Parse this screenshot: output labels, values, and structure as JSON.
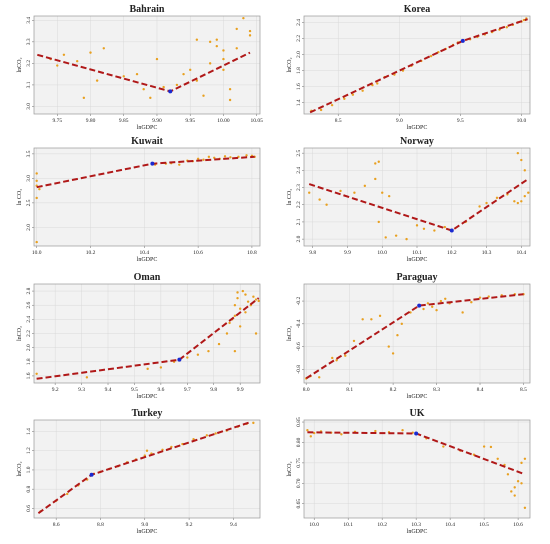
{
  "colors": {
    "points": "#e8a020",
    "fit": "#b01818",
    "breakpoint": "#1a2ad0",
    "frame": "#999999",
    "grid": "#d9d9d9",
    "panel": "#f2f2f2"
  },
  "chart_data": [
    {
      "type": "scatter",
      "title": "Bahrain",
      "xlabel": "lnGDPC",
      "ylabel": "lnCO₂",
      "xlim": [
        9.715,
        10.055
      ],
      "ylim": [
        2.965,
        3.42
      ],
      "xticks": [
        "9.75",
        "9.80",
        "9.85",
        "9.90",
        "9.95",
        "10.00",
        "10.05"
      ],
      "xtick_values": [
        9.75,
        9.8,
        9.85,
        9.9,
        9.95,
        10.0,
        10.05
      ],
      "yticks": [
        "3.0",
        "3.1",
        "3.2",
        "3.3",
        "3.4"
      ],
      "ytick_values": [
        3.0,
        3.1,
        3.2,
        3.3,
        3.4
      ],
      "grid": true,
      "fit": [
        [
          9.72,
          3.24
        ],
        [
          9.92,
          3.07
        ],
        [
          10.04,
          3.25
        ]
      ],
      "breakpoint": [
        9.92,
        3.07
      ],
      "points": [
        [
          9.74,
          3.22
        ],
        [
          9.75,
          3.19
        ],
        [
          9.76,
          3.24
        ],
        [
          9.78,
          3.21
        ],
        [
          9.79,
          3.04
        ],
        [
          9.8,
          3.25
        ],
        [
          9.81,
          3.12
        ],
        [
          9.82,
          3.27
        ],
        [
          9.85,
          3.14
        ],
        [
          9.87,
          3.15
        ],
        [
          9.88,
          3.08
        ],
        [
          9.89,
          3.04
        ],
        [
          9.9,
          3.22
        ],
        [
          9.91,
          3.09
        ],
        [
          9.92,
          3.07
        ],
        [
          9.93,
          3.1
        ],
        [
          9.94,
          3.15
        ],
        [
          9.95,
          3.17
        ],
        [
          9.96,
          3.12
        ],
        [
          9.97,
          3.05
        ],
        [
          9.98,
          3.3
        ],
        [
          9.99,
          3.28
        ],
        [
          10.0,
          3.22
        ],
        [
          10.0,
          3.17
        ],
        [
          10.01,
          3.08
        ],
        [
          10.01,
          3.03
        ],
        [
          10.02,
          3.27
        ],
        [
          10.02,
          3.36
        ],
        [
          10.03,
          3.41
        ],
        [
          10.04,
          3.35
        ],
        [
          10.04,
          3.33
        ],
        [
          9.99,
          3.31
        ],
        [
          10.0,
          3.26
        ],
        [
          9.96,
          3.31
        ],
        [
          9.98,
          3.2
        ]
      ]
    },
    {
      "type": "scatter",
      "title": "Korea",
      "xlabel": "lnGDPC",
      "ylabel": "lnCO₂",
      "xlim": [
        8.22,
        10.07
      ],
      "ylim": [
        1.26,
        2.48
      ],
      "xticks": [
        "8.5",
        "9.0",
        "9.5",
        "10.0"
      ],
      "xtick_values": [
        8.5,
        9.0,
        9.5,
        10.0
      ],
      "yticks": [
        "1.4",
        "1.6",
        "1.8",
        "2.0",
        "2.2",
        "2.4"
      ],
      "ytick_values": [
        1.4,
        1.6,
        1.8,
        2.0,
        2.2,
        2.4
      ],
      "grid": true,
      "fit": [
        [
          8.27,
          1.28
        ],
        [
          9.52,
          2.17
        ],
        [
          10.05,
          2.44
        ]
      ],
      "breakpoint": [
        9.52,
        2.17
      ],
      "points": [
        [
          8.28,
          1.3
        ],
        [
          8.36,
          1.31
        ],
        [
          8.45,
          1.37
        ],
        [
          8.55,
          1.45
        ],
        [
          8.62,
          1.5
        ],
        [
          8.7,
          1.55
        ],
        [
          8.78,
          1.62
        ],
        [
          8.82,
          1.64
        ],
        [
          8.88,
          1.72
        ],
        [
          8.96,
          1.75
        ],
        [
          9.03,
          1.8
        ],
        [
          9.1,
          1.86
        ],
        [
          9.18,
          1.92
        ],
        [
          9.26,
          1.98
        ],
        [
          9.32,
          2.03
        ],
        [
          9.38,
          2.07
        ],
        [
          9.44,
          2.12
        ],
        [
          9.48,
          2.15
        ],
        [
          9.52,
          2.17
        ],
        [
          9.58,
          2.19
        ],
        [
          9.64,
          2.22
        ],
        [
          9.7,
          2.25
        ],
        [
          9.76,
          2.28
        ],
        [
          9.82,
          2.31
        ],
        [
          9.88,
          2.34
        ],
        [
          9.93,
          2.37
        ],
        [
          9.97,
          2.4
        ],
        [
          10.0,
          2.41
        ],
        [
          10.02,
          2.43
        ],
        [
          10.04,
          2.45
        ]
      ]
    },
    {
      "type": "scatter",
      "title": "Kuwait",
      "xlabel": "lnGDPC",
      "ylabel": "ln CO₂",
      "xlim": [
        9.99,
        10.83
      ],
      "ylim": [
        1.62,
        3.62
      ],
      "xticks": [
        "10.0",
        "10.2",
        "10.4",
        "10.6",
        "10.8"
      ],
      "xtick_values": [
        10.0,
        10.2,
        10.4,
        10.6,
        10.8
      ],
      "yticks": [
        "2.0",
        "2.5",
        "3.0",
        "3.5"
      ],
      "ytick_values": [
        2.0,
        2.5,
        3.0,
        3.5
      ],
      "grid": true,
      "fit": [
        [
          10.0,
          2.82
        ],
        [
          10.43,
          3.3
        ],
        [
          10.81,
          3.44
        ]
      ],
      "breakpoint": [
        10.43,
        3.3
      ],
      "points": [
        [
          10.0,
          1.7
        ],
        [
          10.0,
          2.6
        ],
        [
          10.0,
          2.85
        ],
        [
          10.0,
          2.95
        ],
        [
          10.0,
          3.1
        ],
        [
          10.01,
          2.78
        ],
        [
          10.44,
          3.28
        ],
        [
          10.48,
          3.3
        ],
        [
          10.5,
          3.31
        ],
        [
          10.53,
          3.28
        ],
        [
          10.56,
          3.36
        ],
        [
          10.58,
          3.35
        ],
        [
          10.6,
          3.4
        ],
        [
          10.62,
          3.38
        ],
        [
          10.64,
          3.44
        ],
        [
          10.66,
          3.42
        ],
        [
          10.68,
          3.4
        ],
        [
          10.7,
          3.45
        ],
        [
          10.72,
          3.43
        ],
        [
          10.75,
          3.44
        ],
        [
          10.78,
          3.47
        ],
        [
          10.8,
          3.46
        ],
        [
          10.81,
          3.44
        ]
      ]
    },
    {
      "type": "scatter",
      "title": "Norway",
      "xlabel": "lnGDPC",
      "ylabel": "ln CO₂",
      "xlim": [
        9.775,
        10.425
      ],
      "ylim": [
        1.96,
        2.53
      ],
      "xticks": [
        "9.8",
        "9.9",
        "10.0",
        "10.1",
        "10.2",
        "10.3",
        "10.4"
      ],
      "xtick_values": [
        9.8,
        9.9,
        10.0,
        10.1,
        10.2,
        10.3,
        10.4
      ],
      "yticks": [
        "2.0",
        "2.1",
        "2.2",
        "2.3",
        "2.4",
        "2.5"
      ],
      "ytick_values": [
        2.0,
        2.1,
        2.2,
        2.3,
        2.4,
        2.5
      ],
      "grid": true,
      "fit": [
        [
          9.79,
          2.32
        ],
        [
          10.2,
          2.05
        ],
        [
          10.42,
          2.35
        ]
      ],
      "breakpoint": [
        10.2,
        2.05
      ],
      "points": [
        [
          9.79,
          2.27
        ],
        [
          9.82,
          2.23
        ],
        [
          9.84,
          2.2
        ],
        [
          9.88,
          2.28
        ],
        [
          9.92,
          2.27
        ],
        [
          9.95,
          2.31
        ],
        [
          9.98,
          2.35
        ],
        [
          9.98,
          2.44
        ],
        [
          9.99,
          2.45
        ],
        [
          10.0,
          2.27
        ],
        [
          9.99,
          2.1
        ],
        [
          10.01,
          2.01
        ],
        [
          10.02,
          2.25
        ],
        [
          10.04,
          2.02
        ],
        [
          10.07,
          2.0
        ],
        [
          10.1,
          2.08
        ],
        [
          10.12,
          2.06
        ],
        [
          10.15,
          2.05
        ],
        [
          10.18,
          2.07
        ],
        [
          10.2,
          2.05
        ],
        [
          10.24,
          2.1
        ],
        [
          10.28,
          2.19
        ],
        [
          10.3,
          2.21
        ],
        [
          10.33,
          2.24
        ],
        [
          10.36,
          2.26
        ],
        [
          10.38,
          2.22
        ],
        [
          10.39,
          2.5
        ],
        [
          10.4,
          2.46
        ],
        [
          10.41,
          2.4
        ],
        [
          10.41,
          2.25
        ],
        [
          10.4,
          2.22
        ],
        [
          10.42,
          2.27
        ],
        [
          10.39,
          2.21
        ]
      ]
    },
    {
      "type": "scatter",
      "title": "Oman",
      "xlabel": "lnGDPC",
      "ylabel": "lnCO₂",
      "xlim": [
        9.12,
        9.975
      ],
      "ylim": [
        1.5,
        2.9
      ],
      "xticks": [
        "9.2",
        "9.3",
        "9.4",
        "9.5",
        "9.6",
        "9.7",
        "9.8",
        "9.9"
      ],
      "xtick_values": [
        9.2,
        9.3,
        9.4,
        9.5,
        9.6,
        9.7,
        9.8,
        9.9
      ],
      "yticks": [
        "1.6",
        "1.8",
        "2.0",
        "2.2",
        "2.4",
        "2.6",
        "2.8"
      ],
      "ytick_values": [
        1.6,
        1.8,
        2.0,
        2.2,
        2.4,
        2.6,
        2.8
      ],
      "grid": true,
      "fit": [
        [
          9.13,
          1.56
        ],
        [
          9.67,
          1.83
        ],
        [
          9.97,
          2.7
        ]
      ],
      "breakpoint": [
        9.67,
        1.83
      ],
      "points": [
        [
          9.13,
          1.63
        ],
        [
          9.32,
          1.58
        ],
        [
          9.55,
          1.7
        ],
        [
          9.6,
          1.72
        ],
        [
          9.65,
          1.8
        ],
        [
          9.67,
          1.83
        ],
        [
          9.7,
          1.86
        ],
        [
          9.74,
          1.9
        ],
        [
          9.78,
          1.95
        ],
        [
          9.82,
          2.05
        ],
        [
          9.85,
          2.2
        ],
        [
          9.86,
          2.35
        ],
        [
          9.87,
          2.4
        ],
        [
          9.88,
          2.45
        ],
        [
          9.88,
          2.6
        ],
        [
          9.89,
          2.7
        ],
        [
          9.89,
          2.78
        ],
        [
          9.9,
          2.55
        ],
        [
          9.9,
          2.3
        ],
        [
          9.91,
          2.8
        ],
        [
          9.92,
          2.75
        ],
        [
          9.92,
          2.5
        ],
        [
          9.93,
          2.65
        ],
        [
          9.94,
          2.6
        ],
        [
          9.95,
          2.72
        ],
        [
          9.96,
          2.68
        ],
        [
          9.96,
          2.2
        ],
        [
          9.97,
          2.66
        ],
        [
          9.88,
          1.95
        ]
      ]
    },
    {
      "type": "scatter",
      "title": "Paraguay",
      "xlabel": "lnGDPC",
      "ylabel": "lnCO₂",
      "xlim": [
        7.995,
        8.515
      ],
      "ylim": [
        -0.92,
        -0.05
      ],
      "xticks": [
        "8.0",
        "8.1",
        "8.2",
        "8.3",
        "8.4",
        "8.5"
      ],
      "xtick_values": [
        8.0,
        8.1,
        8.2,
        8.3,
        8.4,
        8.5
      ],
      "yticks": [
        "-0.8",
        "-0.6",
        "-0.4",
        "-0.2"
      ],
      "ytick_values": [
        -0.8,
        -0.6,
        -0.4,
        -0.2
      ],
      "grid": true,
      "fit": [
        [
          8.0,
          -0.88
        ],
        [
          8.26,
          -0.24
        ],
        [
          8.5,
          -0.14
        ]
      ],
      "breakpoint": [
        8.26,
        -0.24
      ],
      "points": [
        [
          8.0,
          -0.88
        ],
        [
          8.01,
          -0.86
        ],
        [
          8.03,
          -0.87
        ],
        [
          8.06,
          -0.7
        ],
        [
          8.07,
          -0.72
        ],
        [
          8.09,
          -0.68
        ],
        [
          8.11,
          -0.55
        ],
        [
          8.13,
          -0.36
        ],
        [
          8.15,
          -0.36
        ],
        [
          8.17,
          -0.33
        ],
        [
          8.19,
          -0.6
        ],
        [
          8.2,
          -0.66
        ],
        [
          8.21,
          -0.5
        ],
        [
          8.22,
          -0.4
        ],
        [
          8.24,
          -0.3
        ],
        [
          8.26,
          -0.24
        ],
        [
          8.27,
          -0.27
        ],
        [
          8.28,
          -0.22
        ],
        [
          8.29,
          -0.25
        ],
        [
          8.3,
          -0.28
        ],
        [
          8.31,
          -0.2
        ],
        [
          8.32,
          -0.18
        ],
        [
          8.33,
          -0.22
        ],
        [
          8.36,
          -0.3
        ],
        [
          8.38,
          -0.21
        ],
        [
          8.4,
          -0.17
        ],
        [
          8.42,
          -0.16
        ],
        [
          8.45,
          -0.15
        ],
        [
          8.48,
          -0.14
        ],
        [
          8.5,
          -0.14
        ]
      ]
    },
    {
      "type": "scatter",
      "title": "Turkey",
      "xlabel": "lnGDPC",
      "ylabel": "lnCO₂",
      "xlim": [
        8.5,
        9.52
      ],
      "ylim": [
        0.5,
        1.52
      ],
      "xticks": [
        "8.6",
        "8.8",
        "9.0",
        "9.2",
        "9.4"
      ],
      "xtick_values": [
        8.6,
        8.8,
        9.0,
        9.2,
        9.4
      ],
      "yticks": [
        "0.6",
        "0.8",
        "1.0",
        "1.2",
        "1.4"
      ],
      "ytick_values": [
        0.6,
        0.8,
        1.0,
        1.2,
        1.4
      ],
      "grid": true,
      "fit": [
        [
          8.52,
          0.55
        ],
        [
          8.76,
          0.95
        ],
        [
          9.48,
          1.5
        ]
      ],
      "breakpoint": [
        8.76,
        0.95
      ],
      "points": [
        [
          8.53,
          0.57
        ],
        [
          8.6,
          0.68
        ],
        [
          8.65,
          0.75
        ],
        [
          8.7,
          0.84
        ],
        [
          8.74,
          0.9
        ],
        [
          8.77,
          0.96
        ],
        [
          8.8,
          0.98
        ],
        [
          8.84,
          1.01
        ],
        [
          8.88,
          1.04
        ],
        [
          8.92,
          1.08
        ],
        [
          8.96,
          1.11
        ],
        [
          9.0,
          1.15
        ],
        [
          9.01,
          1.2
        ],
        [
          9.03,
          1.17
        ],
        [
          9.08,
          1.21
        ],
        [
          9.12,
          1.24
        ],
        [
          9.17,
          1.27
        ],
        [
          9.22,
          1.32
        ],
        [
          9.28,
          1.36
        ],
        [
          9.32,
          1.38
        ],
        [
          9.37,
          1.41
        ],
        [
          9.42,
          1.45
        ],
        [
          9.46,
          1.48
        ],
        [
          9.49,
          1.49
        ]
      ]
    },
    {
      "type": "scatter",
      "title": "UK",
      "xlabel": "lnGDPC",
      "ylabel": "lnCO₂",
      "xlim": [
        9.97,
        10.635
      ],
      "ylim": [
        0.615,
        0.855
      ],
      "xticks": [
        "10.0",
        "10.1",
        "10.2",
        "10.3",
        "10.4",
        "10.5",
        "10.6"
      ],
      "xtick_values": [
        10.0,
        10.1,
        10.2,
        10.3,
        10.4,
        10.5,
        10.6
      ],
      "yticks": [
        "0.65",
        "0.70",
        "0.75",
        "0.80",
        "0.85"
      ],
      "ytick_values": [
        0.65,
        0.7,
        0.75,
        0.8,
        0.85
      ],
      "grid": true,
      "fit": [
        [
          9.98,
          0.825
        ],
        [
          10.3,
          0.822
        ],
        [
          10.62,
          0.722
        ]
      ],
      "breakpoint": [
        10.3,
        0.822
      ],
      "points": [
        [
          9.98,
          0.83
        ],
        [
          9.99,
          0.815
        ],
        [
          10.0,
          0.823
        ],
        [
          10.02,
          0.827
        ],
        [
          10.05,
          0.824
        ],
        [
          10.08,
          0.82
        ],
        [
          10.12,
          0.826
        ],
        [
          10.18,
          0.828
        ],
        [
          10.22,
          0.825
        ],
        [
          10.26,
          0.83
        ],
        [
          10.29,
          0.824
        ],
        [
          10.3,
          0.822
        ],
        [
          10.33,
          0.81
        ],
        [
          10.38,
          0.79
        ],
        [
          10.43,
          0.78
        ],
        [
          10.47,
          0.77
        ],
        [
          10.5,
          0.79
        ],
        [
          10.52,
          0.789
        ],
        [
          10.54,
          0.76
        ],
        [
          10.56,
          0.745
        ],
        [
          10.57,
          0.722
        ],
        [
          10.58,
          0.68
        ],
        [
          10.59,
          0.69
        ],
        [
          10.59,
          0.67
        ],
        [
          10.6,
          0.705
        ],
        [
          10.61,
          0.75
        ],
        [
          10.61,
          0.7
        ],
        [
          10.62,
          0.64
        ],
        [
          10.62,
          0.76
        ]
      ]
    }
  ]
}
